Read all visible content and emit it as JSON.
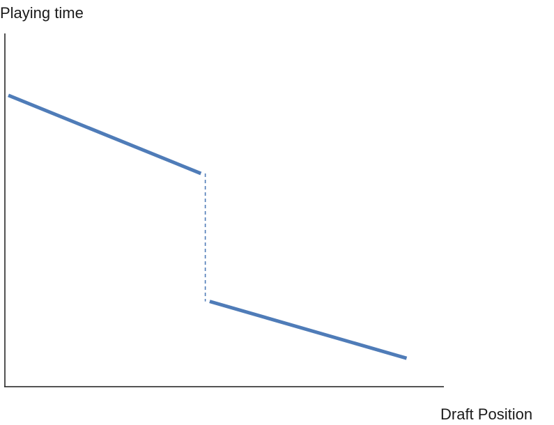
{
  "labels": {
    "y_axis": "Playing time",
    "x_axis": "Draft Position"
  },
  "colors": {
    "line": "#4f7cb8",
    "axis": "#1a1a1a"
  },
  "diagram": {
    "segments": [
      {
        "from": [
          0.0,
          0.82
        ],
        "to": [
          0.44,
          0.6
        ]
      },
      {
        "from": [
          0.46,
          0.24
        ],
        "to": [
          0.91,
          0.08
        ]
      }
    ],
    "discontinuity": {
      "from": [
        0.45,
        0.6
      ],
      "to": [
        0.45,
        0.24
      ],
      "style": "dashed"
    }
  }
}
